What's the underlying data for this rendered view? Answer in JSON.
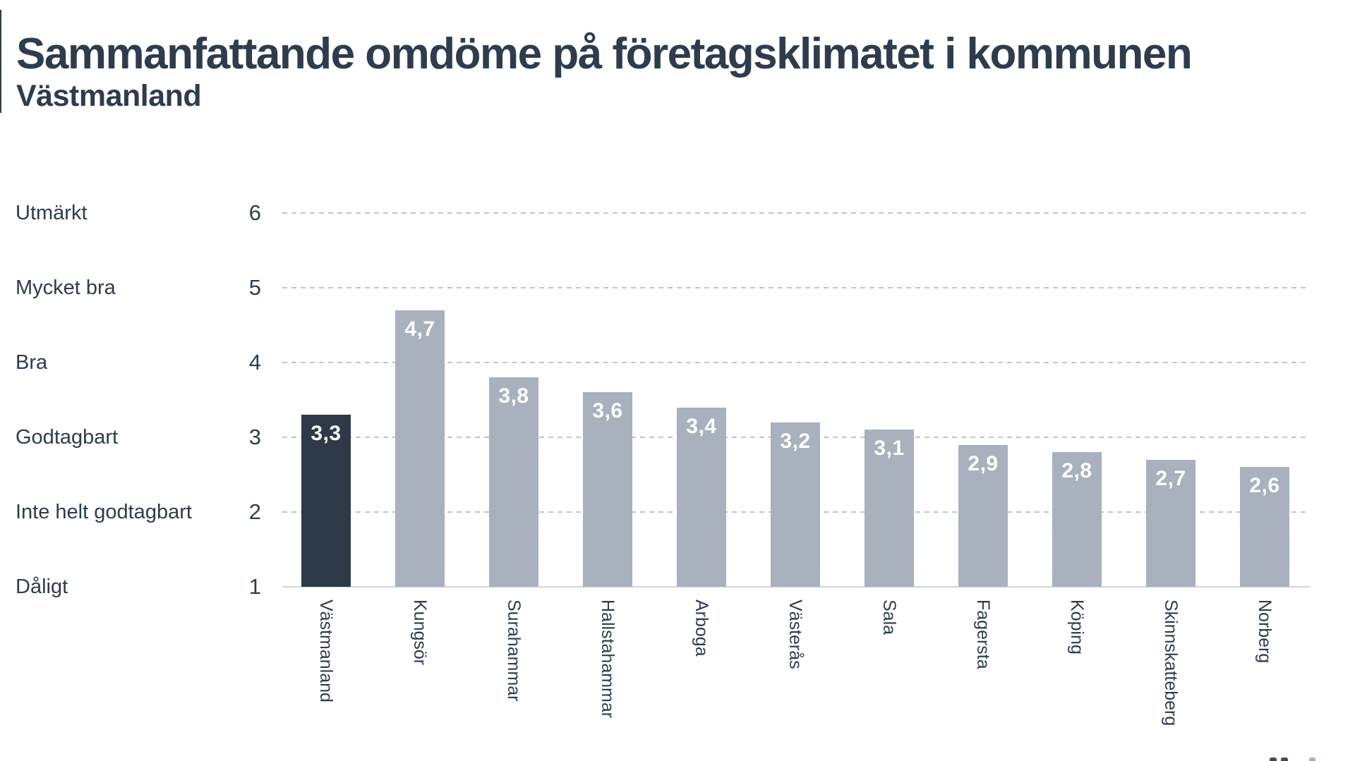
{
  "header": {
    "title": "Sammanfattande omdöme på företagsklimatet i kommunen",
    "subtitle": "Västmanland"
  },
  "chart_data": {
    "type": "bar",
    "title": "Sammanfattande omdöme på företagsklimatet i kommunen",
    "subtitle": "Västmanland",
    "categories": [
      "Västmanland",
      "Kungsör",
      "Surahammar",
      "Hallstahammar",
      "Arboga",
      "Västerås",
      "Sala",
      "Fagersta",
      "Köping",
      "Skinnskatteberg",
      "Norberg"
    ],
    "values": [
      3.3,
      4.7,
      3.8,
      3.6,
      3.4,
      3.2,
      3.1,
      2.9,
      2.8,
      2.7,
      2.6
    ],
    "value_labels": [
      "3,3",
      "4,7",
      "3,8",
      "3,6",
      "3,4",
      "3,2",
      "3,1",
      "2,9",
      "2,8",
      "2,7",
      "2,6"
    ],
    "highlight_category": "Västmanland",
    "highlight_index": 0,
    "y_axis": {
      "numeric_ticks": [
        6,
        5,
        4,
        3,
        2,
        1
      ],
      "text_labels": [
        "Utmärkt",
        "Mycket bra",
        "Bra",
        "Godtagbart",
        "Inte helt godtagbart",
        "Dåligt"
      ],
      "range": [
        1,
        6
      ],
      "gridlines": "dashed-horizontal",
      "baseline": "solid"
    },
    "xlabel": "",
    "ylabel": "",
    "legend": "none",
    "colors": {
      "highlight_bar": "#2e3a48",
      "bar": "#a8b1bd",
      "gridline": "#bdc6ce",
      "axis_line": "#cfd5da",
      "text": "#2e3c4d",
      "value_label": "#ffffff"
    }
  }
}
